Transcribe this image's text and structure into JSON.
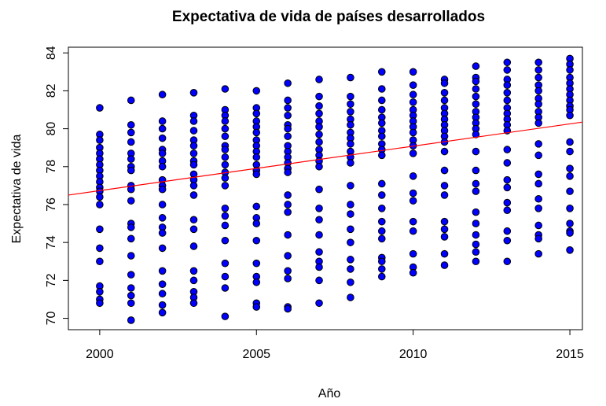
{
  "chart_data": {
    "type": "scatter",
    "title": "Expectativa de vida de países desarrollados",
    "xlabel": "Año",
    "ylabel": "Expectativa de vida",
    "xlim": [
      1999.0,
      2015.4
    ],
    "ylim": [
      69.4,
      84.3
    ],
    "xticks": [
      2000,
      2005,
      2010,
      2015
    ],
    "yticks": [
      70,
      72,
      74,
      76,
      78,
      80,
      82,
      84
    ],
    "grid": false,
    "point_color": "#0000ff",
    "point_edge_color": "#000000",
    "trend_line_color": "#ff0000",
    "trend_line": {
      "x": [
        1999.0,
        2015.4
      ],
      "y": [
        76.5,
        80.35
      ]
    },
    "points": [
      [
        2000,
        81.1
      ],
      [
        2000,
        79.7
      ],
      [
        2000,
        79.4
      ],
      [
        2000,
        79.0
      ],
      [
        2000,
        78.7
      ],
      [
        2000,
        78.4
      ],
      [
        2000,
        78.1
      ],
      [
        2000,
        77.8
      ],
      [
        2000,
        77.5
      ],
      [
        2000,
        77.2
      ],
      [
        2000,
        76.9
      ],
      [
        2000,
        76.7
      ],
      [
        2000,
        76.4
      ],
      [
        2000,
        76.0
      ],
      [
        2000,
        74.7
      ],
      [
        2000,
        73.7
      ],
      [
        2000,
        73.0
      ],
      [
        2000,
        71.7
      ],
      [
        2000,
        71.4
      ],
      [
        2000,
        71.0
      ],
      [
        2000,
        70.8
      ],
      [
        2001,
        81.5
      ],
      [
        2001,
        80.2
      ],
      [
        2001,
        79.8
      ],
      [
        2001,
        79.3
      ],
      [
        2001,
        78.7
      ],
      [
        2001,
        78.4
      ],
      [
        2001,
        78.0
      ],
      [
        2001,
        77.8
      ],
      [
        2001,
        77.0
      ],
      [
        2001,
        76.8
      ],
      [
        2001,
        76.2
      ],
      [
        2001,
        75.0
      ],
      [
        2001,
        74.8
      ],
      [
        2001,
        74.2
      ],
      [
        2001,
        73.3
      ],
      [
        2001,
        72.3
      ],
      [
        2001,
        71.6
      ],
      [
        2001,
        71.2
      ],
      [
        2001,
        70.8
      ],
      [
        2001,
        69.9
      ],
      [
        2002,
        81.8
      ],
      [
        2002,
        80.4
      ],
      [
        2002,
        80.0
      ],
      [
        2002,
        79.5
      ],
      [
        2002,
        78.9
      ],
      [
        2002,
        78.7
      ],
      [
        2002,
        78.3
      ],
      [
        2002,
        78.0
      ],
      [
        2002,
        77.3
      ],
      [
        2002,
        77.0
      ],
      [
        2002,
        76.8
      ],
      [
        2002,
        76.0
      ],
      [
        2002,
        75.3
      ],
      [
        2002,
        74.8
      ],
      [
        2002,
        74.5
      ],
      [
        2002,
        73.7
      ],
      [
        2002,
        72.5
      ],
      [
        2002,
        71.8
      ],
      [
        2002,
        71.3
      ],
      [
        2002,
        70.7
      ],
      [
        2002,
        70.3
      ],
      [
        2003,
        81.9
      ],
      [
        2003,
        80.7
      ],
      [
        2003,
        80.4
      ],
      [
        2003,
        79.9
      ],
      [
        2003,
        79.4
      ],
      [
        2003,
        79.1
      ],
      [
        2003,
        78.7
      ],
      [
        2003,
        78.3
      ],
      [
        2003,
        78.1
      ],
      [
        2003,
        77.6
      ],
      [
        2003,
        77.3
      ],
      [
        2003,
        77.0
      ],
      [
        2003,
        76.5
      ],
      [
        2003,
        75.2
      ],
      [
        2003,
        74.7
      ],
      [
        2003,
        73.8
      ],
      [
        2003,
        72.5
      ],
      [
        2003,
        72.0
      ],
      [
        2003,
        71.4
      ],
      [
        2003,
        71.1
      ],
      [
        2003,
        70.8
      ],
      [
        2004,
        82.1
      ],
      [
        2004,
        81.0
      ],
      [
        2004,
        80.7
      ],
      [
        2004,
        80.4
      ],
      [
        2004,
        80.0
      ],
      [
        2004,
        79.6
      ],
      [
        2004,
        79.1
      ],
      [
        2004,
        78.9
      ],
      [
        2004,
        78.5
      ],
      [
        2004,
        78.1
      ],
      [
        2004,
        77.7
      ],
      [
        2004,
        77.4
      ],
      [
        2004,
        77.0
      ],
      [
        2004,
        75.8
      ],
      [
        2004,
        75.4
      ],
      [
        2004,
        74.9
      ],
      [
        2004,
        74.1
      ],
      [
        2004,
        72.9
      ],
      [
        2004,
        72.2
      ],
      [
        2004,
        71.6
      ],
      [
        2004,
        70.1
      ],
      [
        2005,
        82.0
      ],
      [
        2005,
        81.1
      ],
      [
        2005,
        80.8
      ],
      [
        2005,
        80.4
      ],
      [
        2005,
        80.1
      ],
      [
        2005,
        79.8
      ],
      [
        2005,
        79.4
      ],
      [
        2005,
        79.1
      ],
      [
        2005,
        78.8
      ],
      [
        2005,
        78.5
      ],
      [
        2005,
        78.1
      ],
      [
        2005,
        77.8
      ],
      [
        2005,
        77.6
      ],
      [
        2005,
        75.9
      ],
      [
        2005,
        75.3
      ],
      [
        2005,
        75.0
      ],
      [
        2005,
        74.1
      ],
      [
        2005,
        72.9
      ],
      [
        2005,
        72.2
      ],
      [
        2005,
        71.9
      ],
      [
        2005,
        70.8
      ],
      [
        2005,
        70.6
      ],
      [
        2006,
        82.4
      ],
      [
        2006,
        81.5
      ],
      [
        2006,
        81.1
      ],
      [
        2006,
        80.7
      ],
      [
        2006,
        80.2
      ],
      [
        2006,
        80.0
      ],
      [
        2006,
        79.6
      ],
      [
        2006,
        79.1
      ],
      [
        2006,
        78.8
      ],
      [
        2006,
        78.5
      ],
      [
        2006,
        78.2
      ],
      [
        2006,
        77.9
      ],
      [
        2006,
        77.7
      ],
      [
        2006,
        76.5
      ],
      [
        2006,
        76.0
      ],
      [
        2006,
        75.6
      ],
      [
        2006,
        74.4
      ],
      [
        2006,
        73.3
      ],
      [
        2006,
        72.5
      ],
      [
        2006,
        72.1
      ],
      [
        2006,
        70.6
      ],
      [
        2006,
        70.5
      ],
      [
        2007,
        82.6
      ],
      [
        2007,
        81.7
      ],
      [
        2007,
        81.2
      ],
      [
        2007,
        80.8
      ],
      [
        2007,
        80.4
      ],
      [
        2007,
        80.1
      ],
      [
        2007,
        79.7
      ],
      [
        2007,
        79.3
      ],
      [
        2007,
        78.9
      ],
      [
        2007,
        78.6
      ],
      [
        2007,
        78.3
      ],
      [
        2007,
        78.0
      ],
      [
        2007,
        76.8
      ],
      [
        2007,
        75.8
      ],
      [
        2007,
        75.2
      ],
      [
        2007,
        74.4
      ],
      [
        2007,
        73.5
      ],
      [
        2007,
        73.0
      ],
      [
        2007,
        72.7
      ],
      [
        2007,
        72.0
      ],
      [
        2007,
        70.8
      ],
      [
        2008,
        82.7
      ],
      [
        2008,
        81.7
      ],
      [
        2008,
        81.3
      ],
      [
        2008,
        80.9
      ],
      [
        2008,
        80.5
      ],
      [
        2008,
        80.2
      ],
      [
        2008,
        79.8
      ],
      [
        2008,
        79.5
      ],
      [
        2008,
        79.2
      ],
      [
        2008,
        78.8
      ],
      [
        2008,
        78.5
      ],
      [
        2008,
        78.2
      ],
      [
        2008,
        77.0
      ],
      [
        2008,
        76.0
      ],
      [
        2008,
        75.5
      ],
      [
        2008,
        74.7
      ],
      [
        2008,
        74.0
      ],
      [
        2008,
        73.1
      ],
      [
        2008,
        72.6
      ],
      [
        2008,
        71.9
      ],
      [
        2008,
        71.1
      ],
      [
        2009,
        83.0
      ],
      [
        2009,
        82.1
      ],
      [
        2009,
        81.5
      ],
      [
        2009,
        81.0
      ],
      [
        2009,
        80.6
      ],
      [
        2009,
        80.3
      ],
      [
        2009,
        79.9
      ],
      [
        2009,
        79.6
      ],
      [
        2009,
        79.2
      ],
      [
        2009,
        78.9
      ],
      [
        2009,
        78.6
      ],
      [
        2009,
        77.1
      ],
      [
        2009,
        76.5
      ],
      [
        2009,
        75.8
      ],
      [
        2009,
        75.1
      ],
      [
        2009,
        74.6
      ],
      [
        2009,
        74.2
      ],
      [
        2009,
        73.2
      ],
      [
        2009,
        73.0
      ],
      [
        2009,
        72.6
      ],
      [
        2009,
        72.2
      ],
      [
        2010,
        83.0
      ],
      [
        2010,
        82.3
      ],
      [
        2010,
        81.8
      ],
      [
        2010,
        81.4
      ],
      [
        2010,
        81.0
      ],
      [
        2010,
        80.7
      ],
      [
        2010,
        80.4
      ],
      [
        2010,
        80.1
      ],
      [
        2010,
        79.8
      ],
      [
        2010,
        79.4
      ],
      [
        2010,
        79.1
      ],
      [
        2010,
        78.7
      ],
      [
        2010,
        77.5
      ],
      [
        2010,
        76.6
      ],
      [
        2010,
        76.2
      ],
      [
        2010,
        75.1
      ],
      [
        2010,
        74.6
      ],
      [
        2010,
        73.4
      ],
      [
        2010,
        72.7
      ],
      [
        2010,
        72.4
      ],
      [
        2011,
        82.6
      ],
      [
        2011,
        82.4
      ],
      [
        2011,
        81.9
      ],
      [
        2011,
        81.5
      ],
      [
        2011,
        81.1
      ],
      [
        2011,
        80.8
      ],
      [
        2011,
        80.5
      ],
      [
        2011,
        80.2
      ],
      [
        2011,
        79.9
      ],
      [
        2011,
        79.6
      ],
      [
        2011,
        79.3
      ],
      [
        2011,
        78.8
      ],
      [
        2011,
        77.8
      ],
      [
        2011,
        77.0
      ],
      [
        2011,
        76.5
      ],
      [
        2011,
        75.1
      ],
      [
        2011,
        74.7
      ],
      [
        2011,
        74.3
      ],
      [
        2011,
        73.4
      ],
      [
        2011,
        72.8
      ],
      [
        2012,
        83.3
      ],
      [
        2012,
        82.7
      ],
      [
        2012,
        82.5
      ],
      [
        2012,
        82.1
      ],
      [
        2012,
        81.7
      ],
      [
        2012,
        81.3
      ],
      [
        2012,
        80.9
      ],
      [
        2012,
        80.6
      ],
      [
        2012,
        80.3
      ],
      [
        2012,
        80.0
      ],
      [
        2012,
        79.7
      ],
      [
        2012,
        78.8
      ],
      [
        2012,
        77.8
      ],
      [
        2012,
        77.1
      ],
      [
        2012,
        76.7
      ],
      [
        2012,
        75.6
      ],
      [
        2012,
        75.0
      ],
      [
        2012,
        74.4
      ],
      [
        2012,
        73.9
      ],
      [
        2012,
        73.5
      ],
      [
        2012,
        73.0
      ],
      [
        2013,
        83.5
      ],
      [
        2013,
        83.1
      ],
      [
        2013,
        82.6
      ],
      [
        2013,
        82.3
      ],
      [
        2013,
        81.9
      ],
      [
        2013,
        81.5
      ],
      [
        2013,
        81.1
      ],
      [
        2013,
        80.8
      ],
      [
        2013,
        80.5
      ],
      [
        2013,
        80.2
      ],
      [
        2013,
        79.9
      ],
      [
        2013,
        78.9
      ],
      [
        2013,
        78.2
      ],
      [
        2013,
        77.3
      ],
      [
        2013,
        76.9
      ],
      [
        2013,
        76.1
      ],
      [
        2013,
        75.7
      ],
      [
        2013,
        74.6
      ],
      [
        2013,
        74.1
      ],
      [
        2013,
        73.0
      ],
      [
        2014,
        83.5
      ],
      [
        2014,
        83.1
      ],
      [
        2014,
        82.7
      ],
      [
        2014,
        82.3
      ],
      [
        2014,
        82.0
      ],
      [
        2014,
        81.6
      ],
      [
        2014,
        81.3
      ],
      [
        2014,
        80.9
      ],
      [
        2014,
        80.6
      ],
      [
        2014,
        80.3
      ],
      [
        2014,
        79.2
      ],
      [
        2014,
        78.6
      ],
      [
        2014,
        77.6
      ],
      [
        2014,
        77.1
      ],
      [
        2014,
        76.3
      ],
      [
        2014,
        75.8
      ],
      [
        2014,
        74.9
      ],
      [
        2014,
        74.4
      ],
      [
        2014,
        74.2
      ],
      [
        2014,
        73.4
      ],
      [
        2015,
        83.7
      ],
      [
        2015,
        83.4
      ],
      [
        2015,
        83.1
      ],
      [
        2015,
        82.7
      ],
      [
        2015,
        82.4
      ],
      [
        2015,
        82.1
      ],
      [
        2015,
        81.8
      ],
      [
        2015,
        81.5
      ],
      [
        2015,
        81.2
      ],
      [
        2015,
        81.0
      ],
      [
        2015,
        80.7
      ],
      [
        2015,
        79.3
      ],
      [
        2015,
        78.8
      ],
      [
        2015,
        77.9
      ],
      [
        2015,
        77.5
      ],
      [
        2015,
        76.7
      ],
      [
        2015,
        75.8
      ],
      [
        2015,
        75.0
      ],
      [
        2015,
        74.6
      ],
      [
        2015,
        74.5
      ],
      [
        2015,
        73.6
      ]
    ]
  }
}
